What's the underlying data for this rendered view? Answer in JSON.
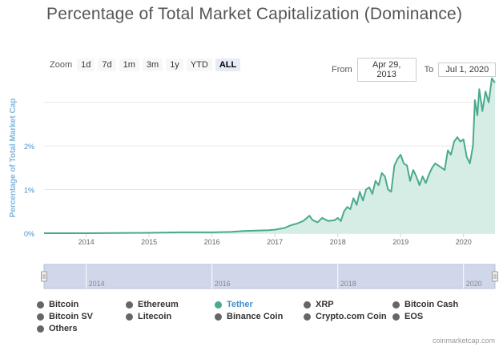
{
  "page": {
    "title": "Percentage of Total Market Capitalization (Dominance)",
    "credit": "coinmarketcap.com"
  },
  "zoom": {
    "label": "Zoom",
    "buttons": [
      "1d",
      "7d",
      "1m",
      "3m",
      "1y",
      "YTD",
      "ALL"
    ],
    "active": "ALL"
  },
  "range": {
    "from_label": "From",
    "from_value": "Apr 29, 2013",
    "to_label": "To",
    "to_value": "Jul 1, 2020"
  },
  "legend": [
    {
      "name": "Bitcoin",
      "active": false
    },
    {
      "name": "Ethereum",
      "active": false
    },
    {
      "name": "Tether",
      "active": true
    },
    {
      "name": "XRP",
      "active": false
    },
    {
      "name": "Bitcoin Cash",
      "active": false
    },
    {
      "name": "Bitcoin SV",
      "active": false
    },
    {
      "name": "Litecoin",
      "active": false
    },
    {
      "name": "Binance Coin",
      "active": false
    },
    {
      "name": "Crypto.com Coin",
      "active": false
    },
    {
      "name": "EOS",
      "active": false
    },
    {
      "name": "Others",
      "active": false
    }
  ],
  "chart_data": {
    "type": "area",
    "title": "Percentage of Total Market Capitalization (Dominance)",
    "ylabel": "Percentage of Total Market Cap",
    "xlabel": "",
    "y_ticks": [
      0,
      1,
      2
    ],
    "y_tick_labels": [
      "0%",
      "1%",
      "2%"
    ],
    "x_ticks": [
      "2014",
      "2015",
      "2016",
      "2017",
      "2018",
      "2019",
      "2020"
    ],
    "ylim": [
      0,
      3.6
    ],
    "xlim": [
      2013.33,
      2020.5
    ],
    "grid": true,
    "legend_position": "bottom",
    "colors": {
      "line": "#4aaa8e",
      "fill": "#d6ede6",
      "navigator_mask": "#d0d7ea"
    },
    "series": [
      {
        "name": "Tether",
        "x": [
          2013.33,
          2014.0,
          2015.0,
          2015.5,
          2016.0,
          2016.3,
          2016.5,
          2016.7,
          2016.9,
          2017.0,
          2017.15,
          2017.25,
          2017.35,
          2017.45,
          2017.55,
          2017.6,
          2017.68,
          2017.75,
          2017.85,
          2017.95,
          2018.0,
          2018.05,
          2018.1,
          2018.15,
          2018.2,
          2018.25,
          2018.3,
          2018.35,
          2018.4,
          2018.45,
          2018.5,
          2018.55,
          2018.6,
          2018.65,
          2018.7,
          2018.75,
          2018.8,
          2018.85,
          2018.9,
          2018.95,
          2019.0,
          2019.05,
          2019.1,
          2019.15,
          2019.2,
          2019.25,
          2019.3,
          2019.35,
          2019.4,
          2019.45,
          2019.5,
          2019.55,
          2019.6,
          2019.65,
          2019.7,
          2019.75,
          2019.8,
          2019.85,
          2019.9,
          2019.95,
          2020.0,
          2020.05,
          2020.1,
          2020.15,
          2020.18,
          2020.22,
          2020.25,
          2020.3,
          2020.35,
          2020.4,
          2020.45,
          2020.5
        ],
        "values": [
          0,
          0,
          0.01,
          0.02,
          0.02,
          0.03,
          0.05,
          0.06,
          0.07,
          0.08,
          0.12,
          0.18,
          0.22,
          0.28,
          0.4,
          0.3,
          0.25,
          0.35,
          0.28,
          0.3,
          0.35,
          0.28,
          0.5,
          0.6,
          0.55,
          0.8,
          0.65,
          0.95,
          0.75,
          1.0,
          1.05,
          0.9,
          1.2,
          1.1,
          1.38,
          1.3,
          1.0,
          0.95,
          1.55,
          1.7,
          1.8,
          1.6,
          1.55,
          1.2,
          1.45,
          1.3,
          1.1,
          1.3,
          1.15,
          1.35,
          1.5,
          1.6,
          1.55,
          1.5,
          1.45,
          1.9,
          1.8,
          2.1,
          2.2,
          2.1,
          2.15,
          1.75,
          1.6,
          2.0,
          3.05,
          2.7,
          3.3,
          2.8,
          3.25,
          3.0,
          3.55,
          3.45
        ]
      }
    ],
    "navigator": {
      "x_ticks": [
        "2014",
        "2016",
        "2018",
        "2020"
      ],
      "range": [
        "Apr 29, 2013",
        "Jul 1, 2020"
      ]
    }
  }
}
